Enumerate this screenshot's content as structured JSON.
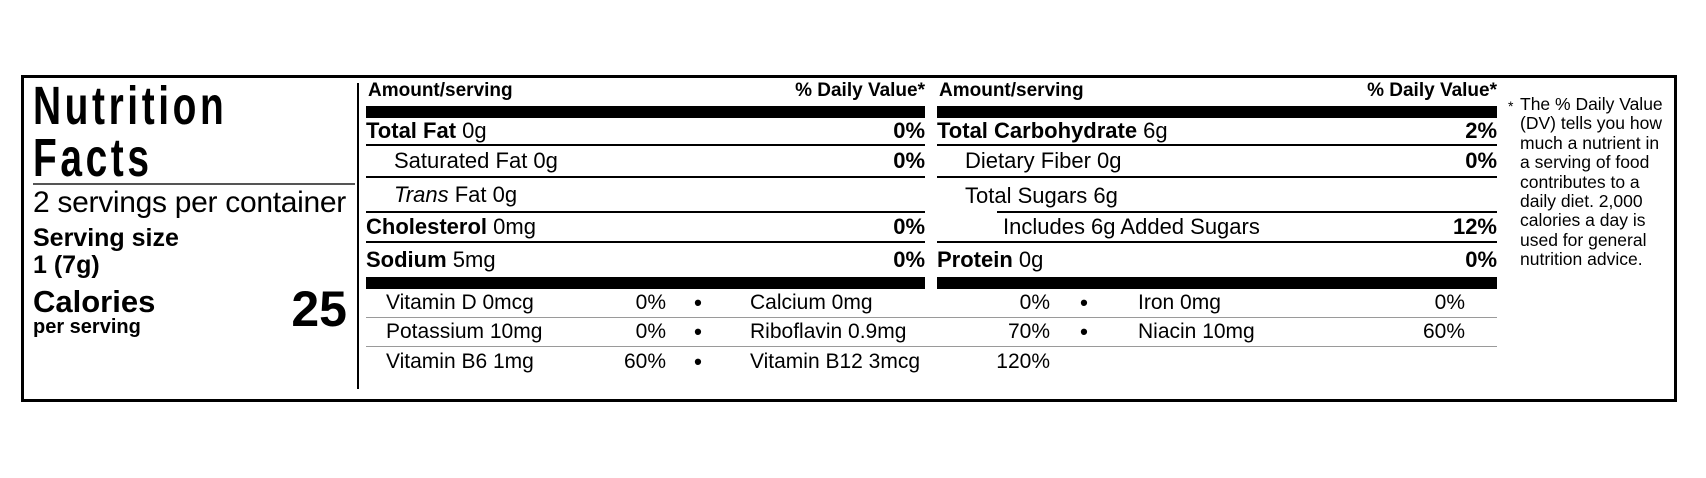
{
  "left_panel": {
    "title_line1": "Nutrition",
    "title_line2": "Facts",
    "servings_per_container": "2 servings per container",
    "serving_size_label": "Serving size",
    "serving_size_value": "1 (7g)",
    "calories_label": "Calories",
    "calories_sublabel": "per serving",
    "calories_value": "25"
  },
  "table": {
    "header_amount": "Amount/serving",
    "header_dv": "% Daily Value*",
    "bullet": "•",
    "col_a_rows": [
      {
        "bold": "Total Fat",
        "italic": "",
        "text": " 0g",
        "pct": "0%"
      },
      {
        "bold": "",
        "italic": "",
        "text": "Saturated Fat 0g",
        "pct": "0%"
      },
      {
        "bold": "",
        "italic": "Trans",
        "text": " Fat 0g",
        "pct": ""
      },
      {
        "bold": "Cholesterol",
        "italic": "",
        "text": " 0mg",
        "pct": "0%"
      },
      {
        "bold": "Sodium",
        "italic": "",
        "text": " 5mg",
        "pct": "0%"
      }
    ],
    "col_b_rows": [
      {
        "bold": "Total Carbohydrate",
        "italic": "",
        "text": " 6g",
        "pct": "2%"
      },
      {
        "bold": "",
        "italic": "",
        "text": "Dietary Fiber 0g",
        "pct": "0%"
      },
      {
        "bold": "",
        "italic": "",
        "text": "Total Sugars 6g",
        "pct": ""
      },
      {
        "bold": "",
        "italic": "",
        "text": "Includes 6g Added Sugars",
        "pct": "12%"
      },
      {
        "bold": "Protein",
        "italic": "",
        "text": " 0g",
        "pct": "0%"
      }
    ],
    "vitamins": [
      [
        {
          "name": "Vitamin D 0mcg",
          "pct": "0%"
        },
        {
          "name": "Calcium 0mg",
          "pct": "0%"
        },
        {
          "name": "Iron 0mg",
          "pct": "0%"
        }
      ],
      [
        {
          "name": "Potassium 10mg",
          "pct": "0%"
        },
        {
          "name": "Riboflavin 0.9mg",
          "pct": "70%"
        },
        {
          "name": "Niacin 10mg",
          "pct": "60%"
        }
      ],
      [
        {
          "name": "Vitamin B6 1mg",
          "pct": "60%"
        },
        {
          "name": "Vitamin B12 3mcg",
          "pct": "120%"
        },
        {
          "name": "",
          "pct": ""
        }
      ]
    ]
  },
  "footnote": {
    "asterisk": "*",
    "text": "The % Daily Value\n(DV) tells you how\nmuch a nutrient in\na serving of food\ncontributes to a\ndaily diet. 2,000\ncalories a day is\nused for general\nnutrition advice."
  },
  "colors": {
    "ink": "#000000",
    "paper": "#ffffff",
    "light_hairline": "#9a9a9a"
  }
}
